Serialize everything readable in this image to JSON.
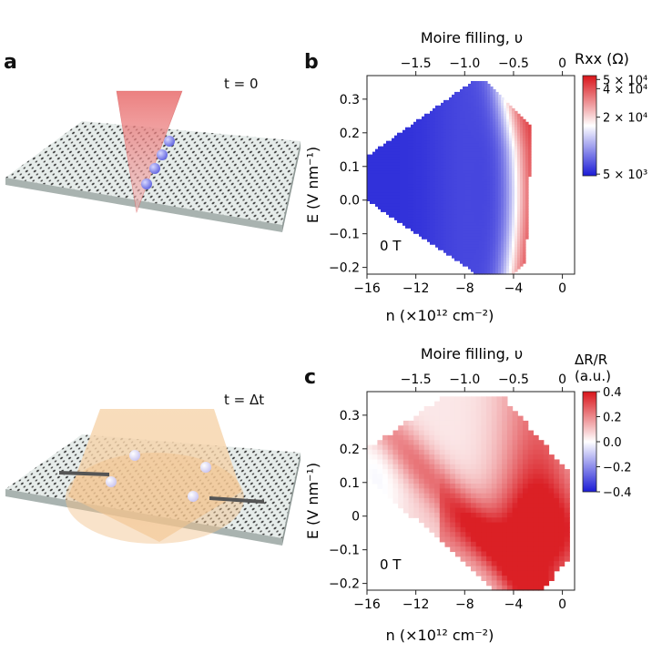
{
  "figure": {
    "panel_a": {
      "letter": "a",
      "time_top": "t = 0",
      "time_bottom": "t = Δt"
    },
    "panel_b": {
      "letter": "b"
    },
    "panel_c": {
      "letter": "c"
    }
  },
  "chart_data": [
    {
      "type": "heatmap",
      "panel": "b",
      "top_axis_label": "Moire filling, υ",
      "top_ticks": [
        "−1.5",
        "−1.0",
        "−0.5",
        "0"
      ],
      "top_tick_values": [
        -1.5,
        -1.0,
        -0.5,
        0
      ],
      "xlabel": "n (×10¹² cm⁻²)",
      "ylabel": "E (V nm⁻¹)",
      "xlim": [
        -16,
        1
      ],
      "ylim": [
        -0.22,
        0.37
      ],
      "x_ticks": [
        -16,
        -12,
        -8,
        -4,
        0
      ],
      "x_tick_labels": [
        "−16",
        "−12",
        "−8",
        "−4",
        "0"
      ],
      "y_ticks": [
        -0.2,
        -0.1,
        0.0,
        0.1,
        0.2,
        0.3
      ],
      "y_tick_labels": [
        "−0.2",
        "−0.1",
        "0.0",
        "0.1",
        "0.2",
        "0.3"
      ],
      "annotation": "0 T",
      "colorbar": {
        "title": "Rxx (Ω)",
        "scale": "log",
        "range": [
          4800,
          55000
        ],
        "ticks": [
          50000,
          40000,
          20000,
          5000
        ],
        "tick_labels": [
          "5 × 10⁴",
          "4 × 10⁴",
          "2 × 10⁴",
          "5 × 10³"
        ],
        "colors": [
          "#1b1bd6",
          "#ffffff",
          "#d9141a"
        ]
      },
      "region_vertices_n_E": [
        [
          -16,
          0.13
        ],
        [
          -7.5,
          0.35
        ],
        [
          -6.2,
          0.35
        ],
        [
          -2.5,
          0.22
        ],
        [
          -3,
          -0.18
        ],
        [
          -4,
          -0.22
        ],
        [
          -7,
          -0.22
        ],
        [
          -16,
          0.0
        ]
      ],
      "trend": "low Rxx (blue) for n < −7; rises to high Rxx (red) near n ≈ −4 to −3"
    },
    {
      "type": "heatmap",
      "panel": "c",
      "top_axis_label": "Moire filling, υ",
      "top_ticks": [
        "−1.5",
        "−1.0",
        "−0.5",
        "0"
      ],
      "top_tick_values": [
        -1.5,
        -1.0,
        -0.5,
        0
      ],
      "xlabel": "n (×10¹² cm⁻²)",
      "ylabel": "E (V nm⁻¹)",
      "xlim": [
        -16,
        1
      ],
      "ylim": [
        -0.22,
        0.37
      ],
      "x_ticks": [
        -16,
        -12,
        -8,
        -4,
        0
      ],
      "x_tick_labels": [
        "−16",
        "−12",
        "−8",
        "−4",
        "0"
      ],
      "y_ticks": [
        -0.2,
        -0.1,
        0,
        0.1,
        0.2,
        0.3
      ],
      "y_tick_labels": [
        "−0.2",
        "−0.1",
        "0",
        "0.1",
        "0.2",
        "0.3"
      ],
      "annotation": "0 T",
      "colorbar": {
        "title_line1": "ΔR/R",
        "title_line2": "(a.u.)",
        "scale": "linear",
        "range": [
          -0.4,
          0.4
        ],
        "ticks": [
          0.4,
          0.2,
          0.0,
          -0.2,
          -0.4
        ],
        "tick_labels": [
          "0.4",
          "0.2",
          "0.0",
          "−0.2",
          "−0.4"
        ],
        "colors": [
          "#1b1bd6",
          "#ffffff",
          "#d9141a"
        ]
      },
      "region_vertices_n_E": [
        [
          -16,
          0.2
        ],
        [
          -9.5,
          0.36
        ],
        [
          -5,
          0.36
        ],
        [
          0.5,
          0.13
        ],
        [
          0.5,
          -0.12
        ],
        [
          -1.5,
          -0.22
        ],
        [
          -5.5,
          -0.22
        ],
        [
          -16,
          0.12
        ]
      ],
      "trend": "ΔR/R mostly positive (red), strongest (≈0.35) near n ≈ −4 to 0 and lower band, weak near n ≈ −16"
    }
  ]
}
